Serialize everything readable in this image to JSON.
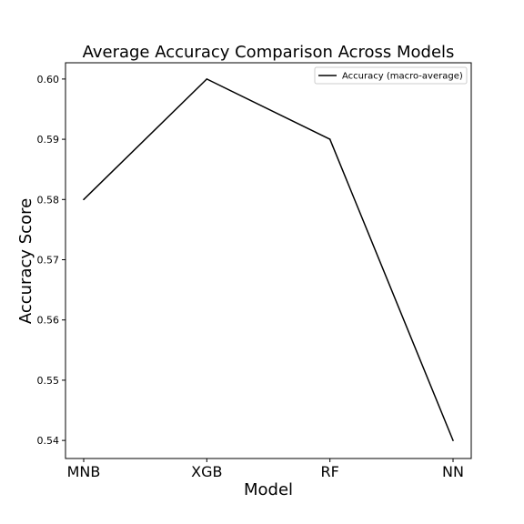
{
  "chart_data": {
    "type": "line",
    "title": "Average Accuracy Comparison Across Models",
    "xlabel": "Model",
    "ylabel": "Accuracy Score",
    "categories": [
      "MNB",
      "XGB",
      "RF",
      "NN"
    ],
    "series": [
      {
        "name": "Accuracy (macro-average)",
        "values": [
          0.58,
          0.6,
          0.59,
          0.54
        ],
        "color": "#000000"
      }
    ],
    "ylim": [
      0.537,
      0.6027
    ],
    "y_ticks": [
      "0.54",
      "0.55",
      "0.56",
      "0.57",
      "0.58",
      "0.59",
      "0.60"
    ],
    "grid": false,
    "legend": "top-right"
  }
}
